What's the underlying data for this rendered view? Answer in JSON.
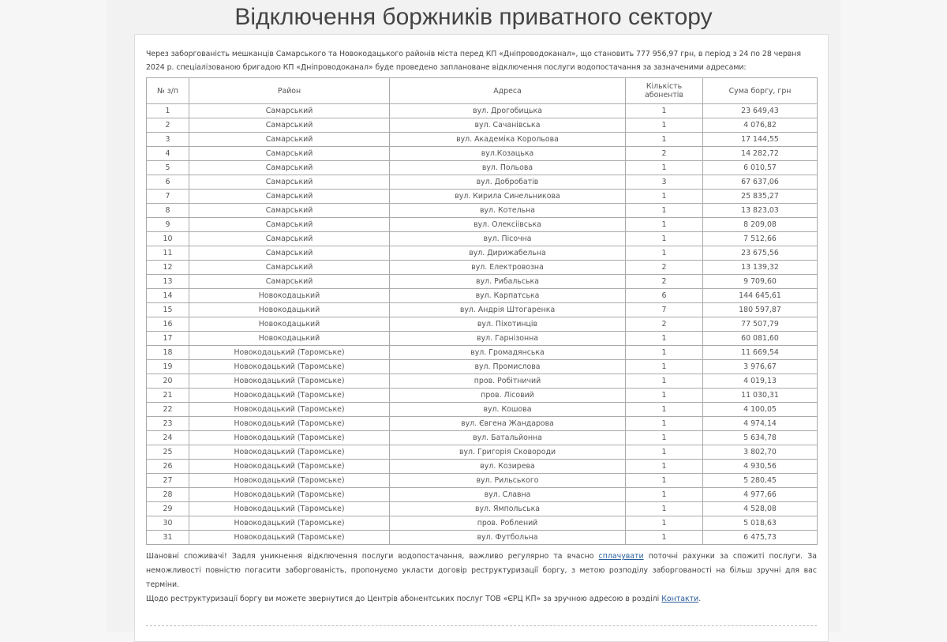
{
  "page": {
    "title": "Відключення боржників приватного сектору"
  },
  "intro": "Через заборгованість мешканців Самарського та Новокодацького районів міста перед КП «Дніпроводоканал», що становить 777 956,97 грн, в період з 24 по 28 червня 2024 р. спеціалізованою бригадою КП «Дніпроводоканал» буде проведено заплановане відключення послуги водопостачання за зазначеними адресами:",
  "table": {
    "headers": [
      "№ з/п",
      "Район",
      "Адреса",
      "Кількість абонентів",
      "Сума боргу, грн"
    ],
    "rows": [
      [
        "1",
        "Самарський",
        "вул. Дрогобицька",
        "1",
        "23 649,43"
      ],
      [
        "2",
        "Самарський",
        "вул. Сачанівська",
        "1",
        "4 076,82"
      ],
      [
        "3",
        "Самарський",
        "вул. Академіка Корольова",
        "1",
        "17 144,55"
      ],
      [
        "4",
        "Самарський",
        "вул.Козацька",
        "2",
        "14 282,72"
      ],
      [
        "5",
        "Самарський",
        "вул. Польова",
        "1",
        "6 010,57"
      ],
      [
        "6",
        "Самарський",
        "вул. Добробатів",
        "3",
        "67 637,06"
      ],
      [
        "7",
        "Самарський",
        "вул. Кирила Синельникова",
        "1",
        "25 835,27"
      ],
      [
        "8",
        "Самарський",
        "вул. Котельна",
        "1",
        "13 823,03"
      ],
      [
        "9",
        "Самарський",
        "вул. Олексіівська",
        "1",
        "8 209,08"
      ],
      [
        "10",
        "Самарський",
        "вул. Пісочна",
        "1",
        "7 512,66"
      ],
      [
        "11",
        "Самарський",
        "вул. Дирижабельна",
        "1",
        "23 675,56"
      ],
      [
        "12",
        "Самарський",
        "вул. Електровозна",
        "2",
        "13 139,32"
      ],
      [
        "13",
        "Самарський",
        "вул. Рибальська",
        "2",
        "9 709,60"
      ],
      [
        "14",
        "Новокодацький",
        "вул. Карпатська",
        "6",
        "144 645,61"
      ],
      [
        "15",
        "Новокодацький",
        "вул. Андрія Штогаренка",
        "7",
        "180 597,87"
      ],
      [
        "16",
        "Новокодацький",
        "вул. Піхотинців",
        "2",
        "77 507,79"
      ],
      [
        "17",
        "Новокодацький",
        "вул. Гарнізонна",
        "1",
        "60 081,60"
      ],
      [
        "18",
        "Новокодацький (Таромське)",
        "вул. Громадянська",
        "1",
        "11 669,54"
      ],
      [
        "19",
        "Новокодацький (Таромське)",
        "вул. Промислова",
        "1",
        "3 976,67"
      ],
      [
        "20",
        "Новокодацький (Таромське)",
        "пров. Робітничий",
        "1",
        "4 019,13"
      ],
      [
        "21",
        "Новокодацький (Таромське)",
        "пров. Лісовий",
        "1",
        "11 030,31"
      ],
      [
        "22",
        "Новокодацький (Таромське)",
        "вул. Кошова",
        "1",
        "4 100,05"
      ],
      [
        "23",
        "Новокодацький (Таромське)",
        "вул. Євгена Жандарова",
        "1",
        "4 974,14"
      ],
      [
        "24",
        "Новокодацький (Таромське)",
        "вул. Батальйонна",
        "1",
        "5 634,78"
      ],
      [
        "25",
        "Новокодацький (Таромське)",
        "вул. Григорія Сковороди",
        "1",
        "3 802,70"
      ],
      [
        "26",
        "Новокодацький (Таромське)",
        "вул. Козирева",
        "1",
        "4 930,56"
      ],
      [
        "27",
        "Новокодацький (Таромське)",
        "вул. Рильського",
        "1",
        "5 280,45"
      ],
      [
        "28",
        "Новокодацький (Таромське)",
        "вул. Славна",
        "1",
        "4 977,66"
      ],
      [
        "29",
        "Новокодацький (Таромське)",
        "вул. Ямпольська",
        "1",
        "4 528,08"
      ],
      [
        "30",
        "Новокодацький (Таромське)",
        "пров. Роблений",
        "1",
        "5 018,63"
      ],
      [
        "31",
        "Новокодацький (Таромське)",
        "вул. Футбольна",
        "1",
        "6 475,73"
      ]
    ]
  },
  "notice": {
    "part1": "Шановні споживачі! Задля уникнення відключення послуги водопостачання, важливо регулярно та вчасно ",
    "link1": "сплачувати",
    "part2": " поточні рахунки за спожиті послуги. За неможливості повністю погасити заборгованість, пропонуємо укласти договір реструктуризації боргу, з метою розподілу заборгованості на більш зручні для вас терміни."
  },
  "restructure": {
    "part1": "Щодо реструктуризації боргу ви можете звернутися до Центрів абонентських послуг ТОВ «ЄРЦ КП» за зручною адресою в розділі ",
    "link": "Контакти",
    "part2": "."
  }
}
